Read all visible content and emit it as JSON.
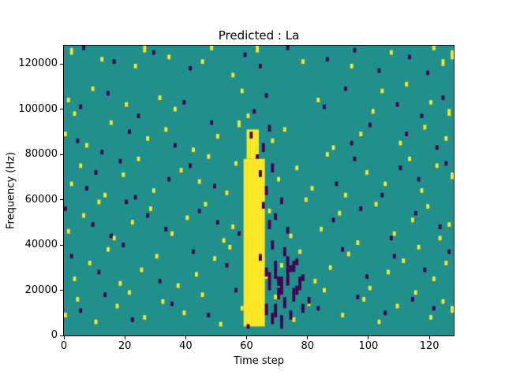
{
  "chart_data": {
    "type": "heatmap",
    "title": "Predicted : La",
    "xlabel": "Time step",
    "ylabel": "Frequency (Hz)",
    "xlim": [
      0,
      128
    ],
    "ylim": [
      0,
      128000
    ],
    "xticks": [
      0,
      20,
      40,
      60,
      80,
      100,
      120
    ],
    "yticks": [
      0,
      20000,
      40000,
      60000,
      80000,
      100000,
      120000
    ],
    "grid": false,
    "legend": "none",
    "colors": {
      "background": "#21908c",
      "high": "#fde725",
      "low": "#440154"
    },
    "grid_size": {
      "cols": 128,
      "rows": 128
    },
    "cell_freq_hz": 1000,
    "regions": [
      {
        "color": "high",
        "x0": 59,
        "x1": 66,
        "y0": 4,
        "y1": 78,
        "note": "solid yellow activation band"
      },
      {
        "color": "high",
        "x0": 60,
        "x1": 64,
        "y0": 78,
        "y1": 91,
        "note": "narrower upper part of band"
      }
    ],
    "runs": {
      "high": [
        [
          2,
          124,
          3
        ],
        [
          12,
          121,
          2
        ],
        [
          23,
          118,
          2
        ],
        [
          26,
          125,
          3
        ],
        [
          34,
          122,
          2
        ],
        [
          45,
          120,
          2
        ],
        [
          48,
          126,
          2
        ],
        [
          55,
          114,
          2
        ],
        [
          63,
          125,
          3
        ],
        [
          78,
          120,
          2
        ],
        [
          94,
          118,
          2
        ],
        [
          107,
          124,
          2
        ],
        [
          112,
          110,
          2
        ],
        [
          121,
          126,
          2
        ],
        [
          124,
          119,
          3
        ],
        [
          127,
          122,
          4
        ],
        [
          1,
          103,
          2
        ],
        [
          3,
          97,
          2
        ],
        [
          9,
          108,
          2
        ],
        [
          20,
          101,
          2
        ],
        [
          31,
          104,
          2
        ],
        [
          36,
          99,
          2
        ],
        [
          58,
          107,
          2
        ],
        [
          60,
          96,
          2
        ],
        [
          83,
          103,
          2
        ],
        [
          101,
          98,
          2
        ],
        [
          104,
          107,
          2
        ],
        [
          120,
          102,
          2
        ],
        [
          126,
          97,
          3
        ],
        [
          0,
          88,
          2
        ],
        [
          7,
          83,
          2
        ],
        [
          15,
          93,
          2
        ],
        [
          27,
          86,
          2
        ],
        [
          33,
          90,
          2
        ],
        [
          42,
          81,
          2
        ],
        [
          50,
          87,
          2
        ],
        [
          57,
          92,
          3
        ],
        [
          68,
          85,
          2
        ],
        [
          72,
          90,
          2
        ],
        [
          88,
          82,
          2
        ],
        [
          97,
          88,
          2
        ],
        [
          110,
          84,
          2
        ],
        [
          118,
          91,
          2
        ],
        [
          125,
          86,
          2
        ],
        [
          2,
          66,
          2
        ],
        [
          5,
          74,
          2
        ],
        [
          13,
          61,
          2
        ],
        [
          19,
          70,
          2
        ],
        [
          24,
          77,
          2
        ],
        [
          29,
          63,
          2
        ],
        [
          38,
          72,
          2
        ],
        [
          44,
          67,
          2
        ],
        [
          47,
          78,
          2
        ],
        [
          53,
          62,
          2
        ],
        [
          56,
          75,
          2
        ],
        [
          70,
          68,
          2
        ],
        [
          76,
          73,
          2
        ],
        [
          81,
          64,
          2
        ],
        [
          86,
          79,
          2
        ],
        [
          92,
          61,
          2
        ],
        [
          99,
          71,
          2
        ],
        [
          105,
          66,
          2
        ],
        [
          113,
          77,
          2
        ],
        [
          117,
          63,
          2
        ],
        [
          122,
          74,
          2
        ],
        [
          127,
          69,
          3
        ],
        [
          1,
          45,
          2
        ],
        [
          6,
          52,
          2
        ],
        [
          11,
          58,
          2
        ],
        [
          16,
          42,
          2
        ],
        [
          22,
          49,
          2
        ],
        [
          28,
          55,
          2
        ],
        [
          35,
          44,
          2
        ],
        [
          40,
          51,
          2
        ],
        [
          46,
          57,
          2
        ],
        [
          52,
          41,
          2
        ],
        [
          55,
          47,
          2
        ],
        [
          67,
          54,
          2
        ],
        [
          74,
          43,
          2
        ],
        [
          79,
          59,
          2
        ],
        [
          84,
          46,
          2
        ],
        [
          90,
          53,
          2
        ],
        [
          96,
          40,
          2
        ],
        [
          102,
          57,
          2
        ],
        [
          108,
          44,
          2
        ],
        [
          114,
          50,
          2
        ],
        [
          119,
          56,
          2
        ],
        [
          123,
          42,
          2
        ],
        [
          126,
          48,
          2
        ],
        [
          3,
          24,
          2
        ],
        [
          8,
          31,
          2
        ],
        [
          14,
          37,
          2
        ],
        [
          18,
          22,
          2
        ],
        [
          25,
          28,
          2
        ],
        [
          30,
          34,
          2
        ],
        [
          37,
          21,
          2
        ],
        [
          43,
          26,
          2
        ],
        [
          49,
          33,
          2
        ],
        [
          54,
          38,
          2
        ],
        [
          66,
          25,
          2
        ],
        [
          71,
          30,
          2
        ],
        [
          77,
          36,
          2
        ],
        [
          82,
          23,
          2
        ],
        [
          87,
          29,
          2
        ],
        [
          93,
          35,
          2
        ],
        [
          100,
          20,
          2
        ],
        [
          106,
          27,
          2
        ],
        [
          111,
          32,
          2
        ],
        [
          116,
          38,
          2
        ],
        [
          121,
          24,
          2
        ],
        [
          125,
          31,
          2
        ],
        [
          0,
          8,
          2
        ],
        [
          4,
          15,
          2
        ],
        [
          10,
          5,
          2
        ],
        [
          17,
          12,
          2
        ],
        [
          21,
          18,
          2
        ],
        [
          26,
          7,
          2
        ],
        [
          32,
          14,
          2
        ],
        [
          39,
          9,
          2
        ],
        [
          45,
          17,
          2
        ],
        [
          51,
          4,
          2
        ],
        [
          58,
          11,
          2
        ],
        [
          69,
          16,
          2
        ],
        [
          75,
          6,
          2
        ],
        [
          80,
          13,
          2
        ],
        [
          85,
          19,
          2
        ],
        [
          91,
          8,
          2
        ],
        [
          98,
          15,
          2
        ],
        [
          103,
          5,
          2
        ],
        [
          109,
          12,
          2
        ],
        [
          115,
          18,
          2
        ],
        [
          120,
          7,
          2
        ],
        [
          124,
          14,
          2
        ],
        [
          127,
          10,
          3
        ]
      ],
      "low": [
        [
          6,
          126,
          2
        ],
        [
          16,
          120,
          2
        ],
        [
          29,
          124,
          2
        ],
        [
          41,
          117,
          2
        ],
        [
          59,
          123,
          2
        ],
        [
          64,
          118,
          2
        ],
        [
          73,
          126,
          2
        ],
        [
          86,
          121,
          2
        ],
        [
          95,
          125,
          2
        ],
        [
          103,
          116,
          2
        ],
        [
          113,
          122,
          2
        ],
        [
          119,
          115,
          2
        ],
        [
          5,
          100,
          2
        ],
        [
          14,
          106,
          2
        ],
        [
          24,
          96,
          2
        ],
        [
          39,
          102,
          2
        ],
        [
          62,
          98,
          2
        ],
        [
          66,
          105,
          2
        ],
        [
          85,
          100,
          2
        ],
        [
          92,
          108,
          2
        ],
        [
          109,
          101,
          2
        ],
        [
          117,
          96,
          2
        ],
        [
          124,
          104,
          2
        ],
        [
          4,
          85,
          2
        ],
        [
          12,
          80,
          2
        ],
        [
          21,
          89,
          2
        ],
        [
          36,
          83,
          2
        ],
        [
          48,
          93,
          2
        ],
        [
          61,
          87,
          3
        ],
        [
          65,
          81,
          4
        ],
        [
          67,
          90,
          3
        ],
        [
          94,
          84,
          2
        ],
        [
          100,
          92,
          2
        ],
        [
          112,
          88,
          2
        ],
        [
          122,
          82,
          2
        ],
        [
          7,
          64,
          2
        ],
        [
          10,
          71,
          2
        ],
        [
          18,
          76,
          2
        ],
        [
          23,
          60,
          2
        ],
        [
          34,
          68,
          2
        ],
        [
          41,
          74,
          2
        ],
        [
          49,
          65,
          2
        ],
        [
          63,
          78,
          2
        ],
        [
          64,
          70,
          3
        ],
        [
          66,
          62,
          4
        ],
        [
          68,
          72,
          4
        ],
        [
          89,
          66,
          2
        ],
        [
          95,
          77,
          2
        ],
        [
          104,
          61,
          2
        ],
        [
          110,
          73,
          2
        ],
        [
          116,
          68,
          2
        ],
        [
          125,
          75,
          2
        ],
        [
          0,
          55,
          2
        ],
        [
          9,
          48,
          2
        ],
        [
          15,
          43,
          2
        ],
        [
          20,
          58,
          2
        ],
        [
          27,
          52,
          2
        ],
        [
          33,
          46,
          2
        ],
        [
          44,
          54,
          2
        ],
        [
          50,
          49,
          2
        ],
        [
          57,
          44,
          2
        ],
        [
          65,
          56,
          3
        ],
        [
          67,
          47,
          4
        ],
        [
          69,
          51,
          3
        ],
        [
          71,
          58,
          3
        ],
        [
          73,
          45,
          3
        ],
        [
          88,
          50,
          2
        ],
        [
          97,
          55,
          2
        ],
        [
          107,
          42,
          2
        ],
        [
          115,
          53,
          2
        ],
        [
          123,
          47,
          2
        ],
        [
          2,
          34,
          2
        ],
        [
          11,
          27,
          2
        ],
        [
          19,
          39,
          2
        ],
        [
          31,
          23,
          2
        ],
        [
          42,
          36,
          2
        ],
        [
          53,
          30,
          2
        ],
        [
          64,
          33,
          3
        ],
        [
          66,
          26,
          4
        ],
        [
          68,
          38,
          4
        ],
        [
          70,
          22,
          4
        ],
        [
          72,
          35,
          4
        ],
        [
          74,
          28,
          3
        ],
        [
          76,
          31,
          3
        ],
        [
          78,
          24,
          3
        ],
        [
          91,
          37,
          2
        ],
        [
          99,
          25,
          2
        ],
        [
          108,
          34,
          2
        ],
        [
          118,
          28,
          2
        ],
        [
          126,
          36,
          2
        ],
        [
          5,
          10,
          2
        ],
        [
          13,
          17,
          2
        ],
        [
          22,
          6,
          2
        ],
        [
          35,
          13,
          2
        ],
        [
          47,
          8,
          2
        ],
        [
          56,
          19,
          2
        ],
        [
          60,
          3,
          2
        ],
        [
          66,
          9,
          5
        ],
        [
          68,
          5,
          5
        ],
        [
          70,
          16,
          5
        ],
        [
          72,
          12,
          5
        ],
        [
          74,
          7,
          4
        ],
        [
          76,
          18,
          4
        ],
        [
          78,
          10,
          4
        ],
        [
          80,
          14,
          3
        ],
        [
          83,
          11,
          2
        ],
        [
          96,
          16,
          2
        ],
        [
          105,
          9,
          2
        ],
        [
          114,
          15,
          2
        ],
        [
          121,
          11,
          2
        ],
        [
          67,
          20,
          8
        ],
        [
          69,
          25,
          8
        ],
        [
          71,
          18,
          8
        ],
        [
          73,
          22,
          8
        ],
        [
          75,
          15,
          6
        ],
        [
          77,
          20,
          6
        ],
        [
          69,
          8,
          6
        ],
        [
          71,
          3,
          6
        ],
        [
          73,
          30,
          5
        ],
        [
          75,
          28,
          5
        ]
      ]
    }
  }
}
